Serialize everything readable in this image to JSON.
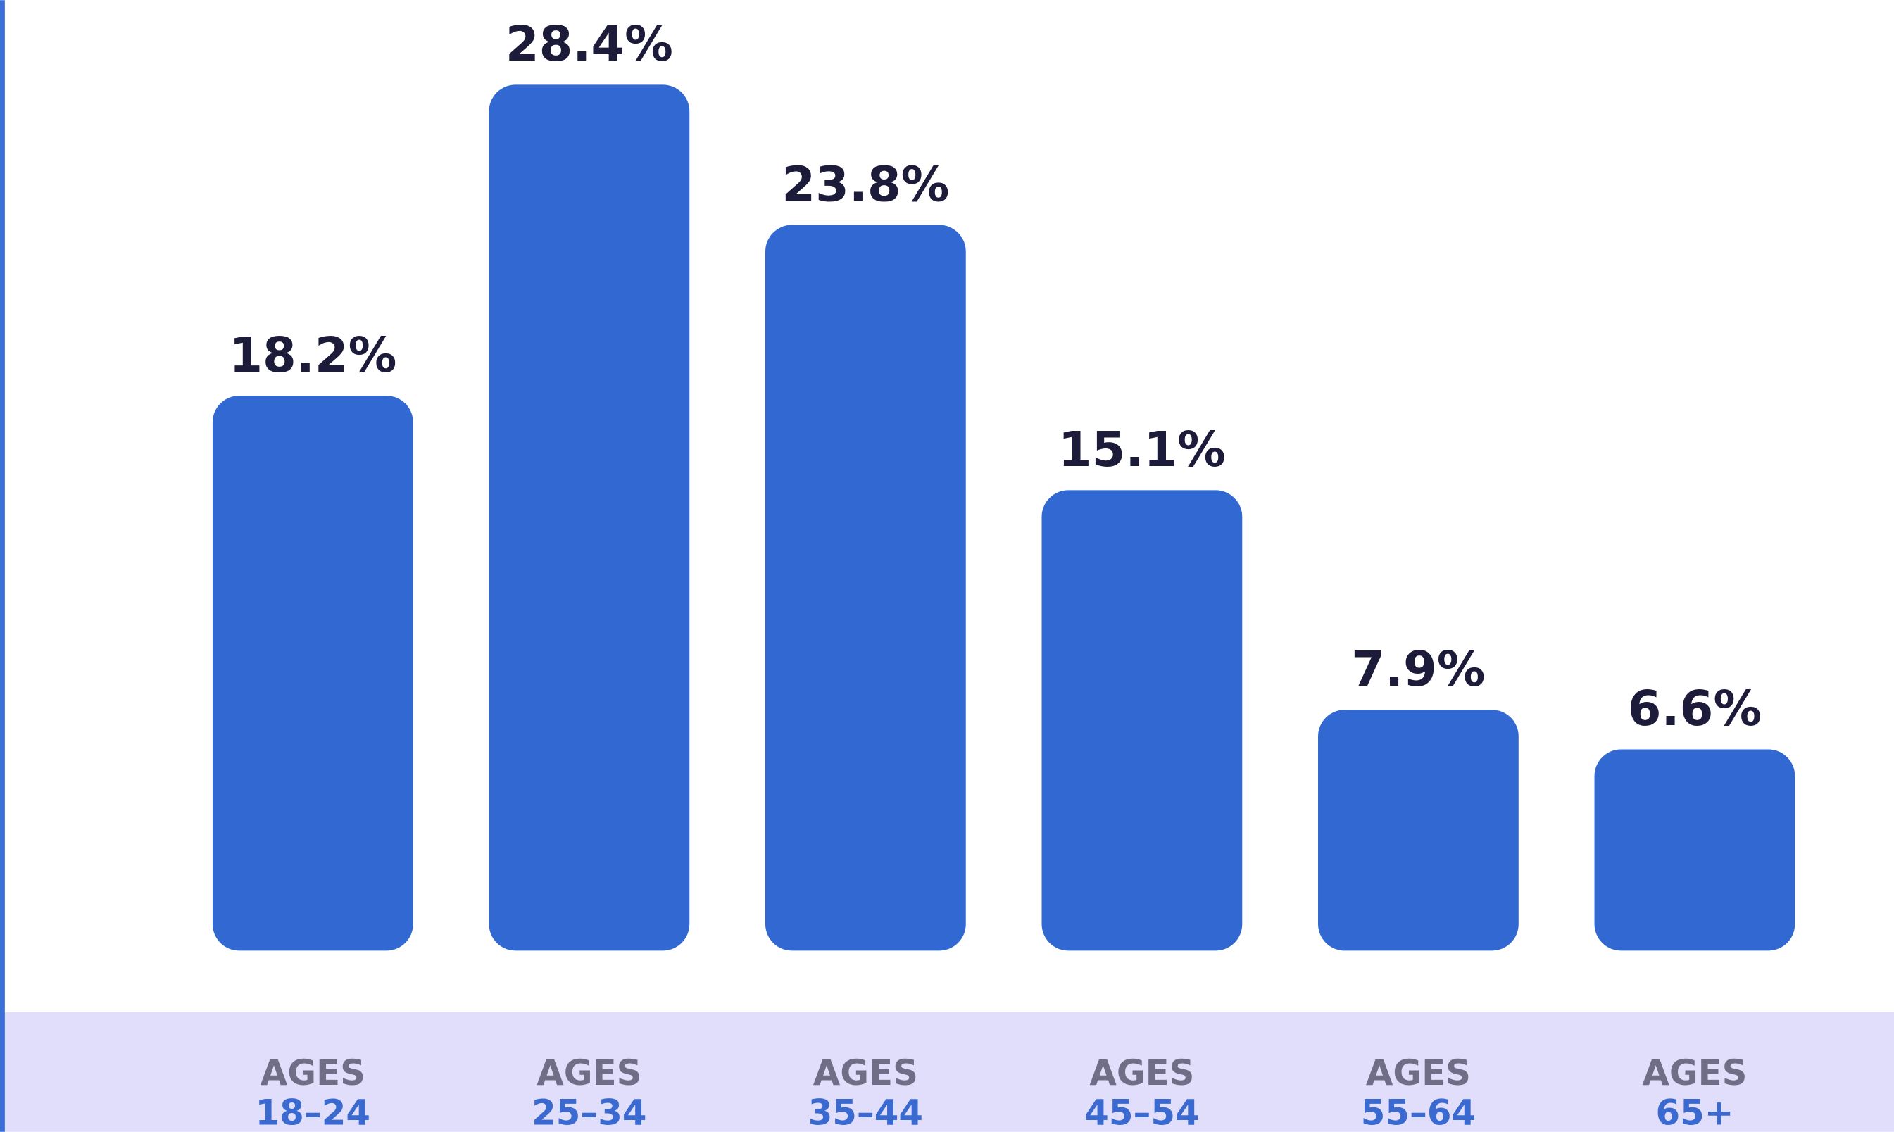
{
  "chart_data": {
    "type": "bar",
    "categories": [
      [
        "AGES",
        "18–24"
      ],
      [
        "AGES",
        "25–34"
      ],
      [
        "AGES",
        "35–44"
      ],
      [
        "AGES",
        "45–54"
      ],
      [
        "AGES",
        "55–64"
      ],
      [
        "AGES",
        "65+"
      ]
    ],
    "values": [
      18.2,
      28.4,
      23.8,
      15.1,
      7.9,
      6.6
    ],
    "value_labels": [
      "18.2%",
      "28.4%",
      "23.8%",
      "15.1%",
      "7.9%",
      "6.6%"
    ],
    "color": "#3268d2"
  }
}
